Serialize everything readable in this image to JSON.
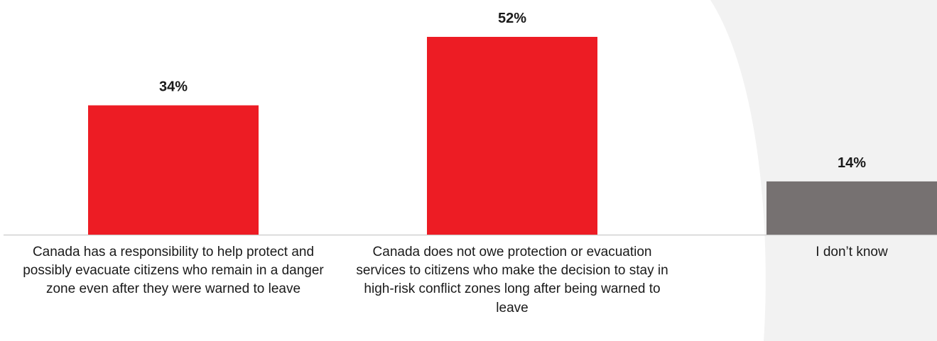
{
  "chart_data": {
    "type": "bar",
    "title": "",
    "xlabel": "",
    "ylabel": "",
    "categories": [
      "Canada has a responsibility to help protect and possibly evacuate citizens who remain in a danger zone even after they were warned to leave",
      "Canada does not owe protection or evacuation services to citizens who make the decision to stay in high-risk conflict zones long after being warned to leave",
      "I don’t know"
    ],
    "values": [
      34,
      52,
      14
    ],
    "value_labels": [
      "34%",
      "52%",
      "14%"
    ],
    "colors": [
      "#ed1c24",
      "#ed1c24",
      "#767171"
    ],
    "ylim": [
      0,
      52
    ],
    "grid": false,
    "legend": "none"
  },
  "background": {
    "panel_color": "#f2f2f2"
  }
}
